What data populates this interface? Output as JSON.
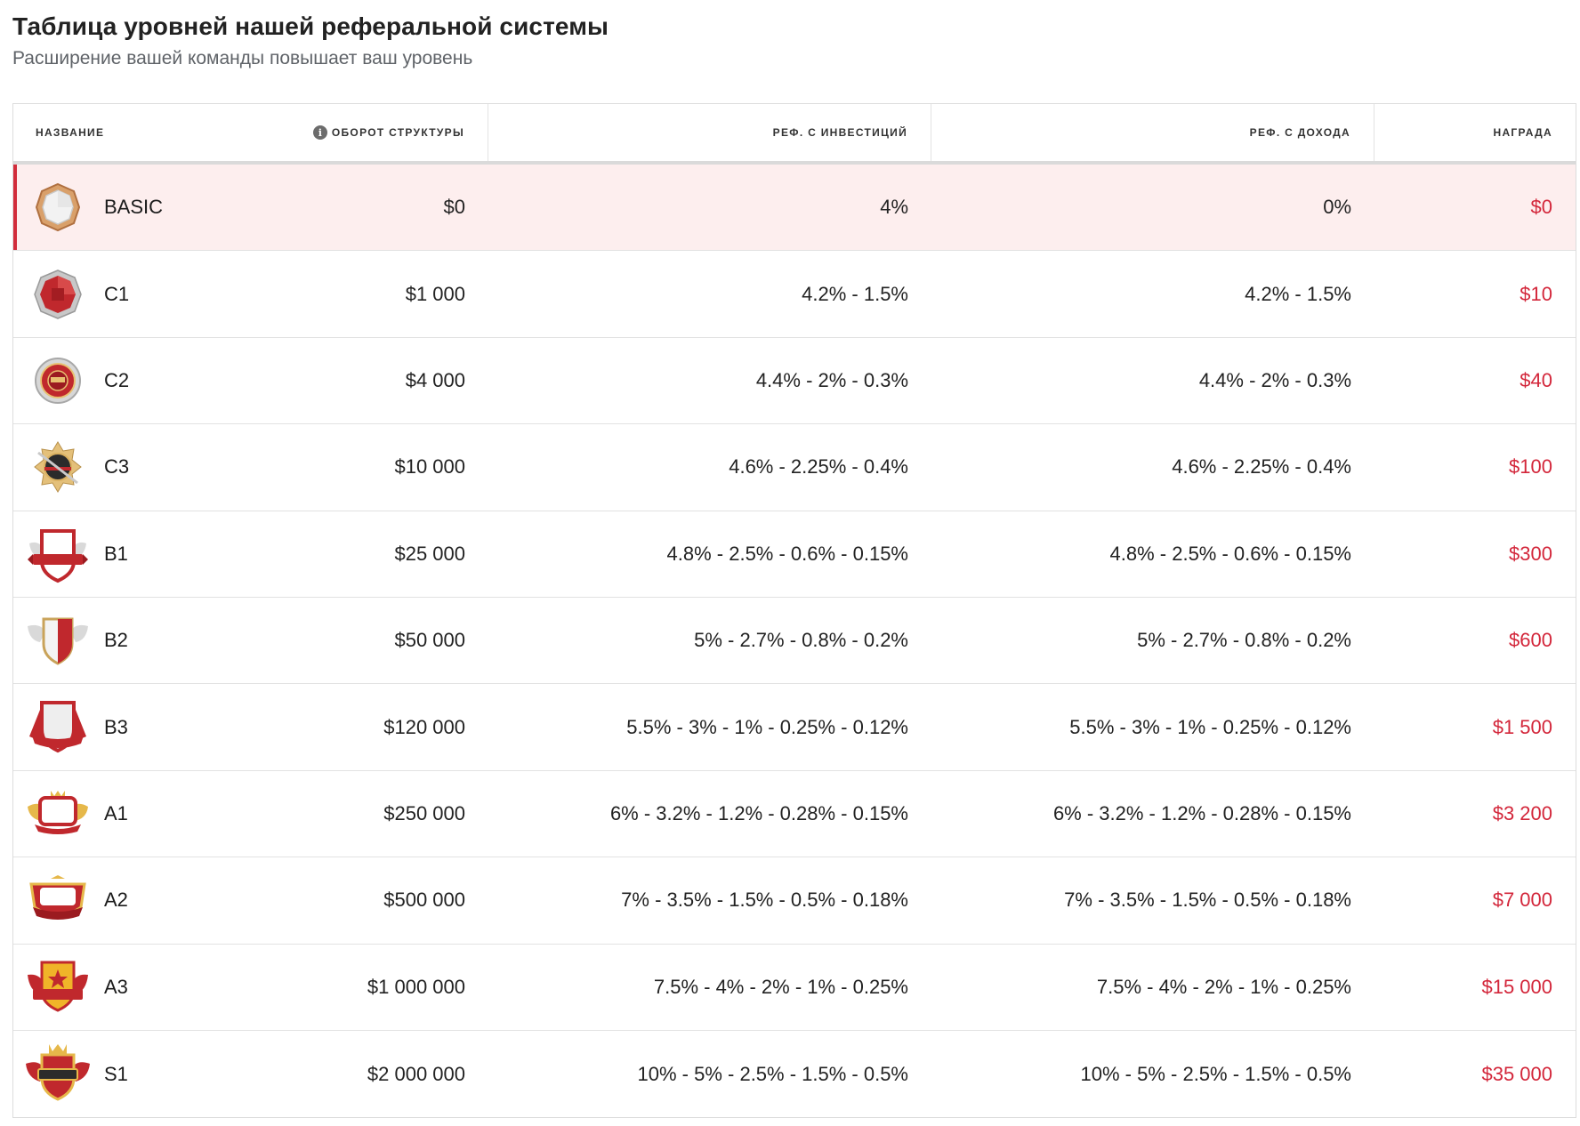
{
  "page": {
    "title": "Таблица уровней нашей реферальной системы",
    "subtitle": "Расширение вашей команды повышает ваш уровень"
  },
  "table": {
    "headers": {
      "name": "НАЗВАНИЕ",
      "turnover": "ОБОРОТ СТРУКТУРЫ",
      "ref_investments": "РЕФ. С ИНВЕСТИЦИЙ",
      "ref_income": "РЕФ. С ДОХОДА",
      "reward": "НАГРАДА"
    },
    "rows": [
      {
        "name": "BASIC",
        "turnover": "$0",
        "ref_investments": "4%",
        "ref_income": "0%",
        "reward": "$0",
        "badge": "basic-badge-icon"
      },
      {
        "name": "C1",
        "turnover": "$1 000",
        "ref_investments": "4.2% - 1.5%",
        "ref_income": "4.2% - 1.5%",
        "reward": "$10",
        "badge": "c1-badge-icon"
      },
      {
        "name": "C2",
        "turnover": "$4 000",
        "ref_investments": "4.4% - 2% - 0.3%",
        "ref_income": "4.4% - 2% - 0.3%",
        "reward": "$40",
        "badge": "c2-badge-icon"
      },
      {
        "name": "C3",
        "turnover": "$10 000",
        "ref_investments": "4.6% - 2.25% - 0.4%",
        "ref_income": "4.6% - 2.25% - 0.4%",
        "reward": "$100",
        "badge": "c3-badge-icon"
      },
      {
        "name": "B1",
        "turnover": "$25 000",
        "ref_investments": "4.8% - 2.5% - 0.6% - 0.15%",
        "ref_income": "4.8% - 2.5% - 0.6% - 0.15%",
        "reward": "$300",
        "badge": "b1-badge-icon"
      },
      {
        "name": "B2",
        "turnover": "$50 000",
        "ref_investments": "5% - 2.7% - 0.8% - 0.2%",
        "ref_income": "5% - 2.7% - 0.8% - 0.2%",
        "reward": "$600",
        "badge": "b2-badge-icon"
      },
      {
        "name": "B3",
        "turnover": "$120 000",
        "ref_investments": "5.5% - 3% - 1% - 0.25% - 0.12%",
        "ref_income": "5.5% - 3% - 1% - 0.25% - 0.12%",
        "reward": "$1 500",
        "badge": "b3-badge-icon"
      },
      {
        "name": "A1",
        "turnover": "$250 000",
        "ref_investments": "6% - 3.2% - 1.2% - 0.28% - 0.15%",
        "ref_income": "6% - 3.2% - 1.2% - 0.28% - 0.15%",
        "reward": "$3 200",
        "badge": "a1-badge-icon"
      },
      {
        "name": "A2",
        "turnover": "$500 000",
        "ref_investments": "7% - 3.5% - 1.5% - 0.5% - 0.18%",
        "ref_income": "7% - 3.5% - 1.5% - 0.5% - 0.18%",
        "reward": "$7 000",
        "badge": "a2-badge-icon"
      },
      {
        "name": "A3",
        "turnover": "$1 000 000",
        "ref_investments": "7.5% - 4% - 2% - 1% - 0.25%",
        "ref_income": "7.5% - 4% - 2% - 1% - 0.25%",
        "reward": "$15 000",
        "badge": "a3-badge-icon"
      },
      {
        "name": "S1",
        "turnover": "$2 000 000",
        "ref_investments": "10% - 5% - 2.5% - 1.5% - 0.5%",
        "ref_income": "10% - 5% - 2.5% - 1.5% - 0.5%",
        "reward": "$35 000",
        "badge": "s1-badge-icon"
      }
    ],
    "active_row": "BASIC"
  },
  "colors": {
    "accent": "#d3263a",
    "active_row_bg": "#fdeeee"
  }
}
